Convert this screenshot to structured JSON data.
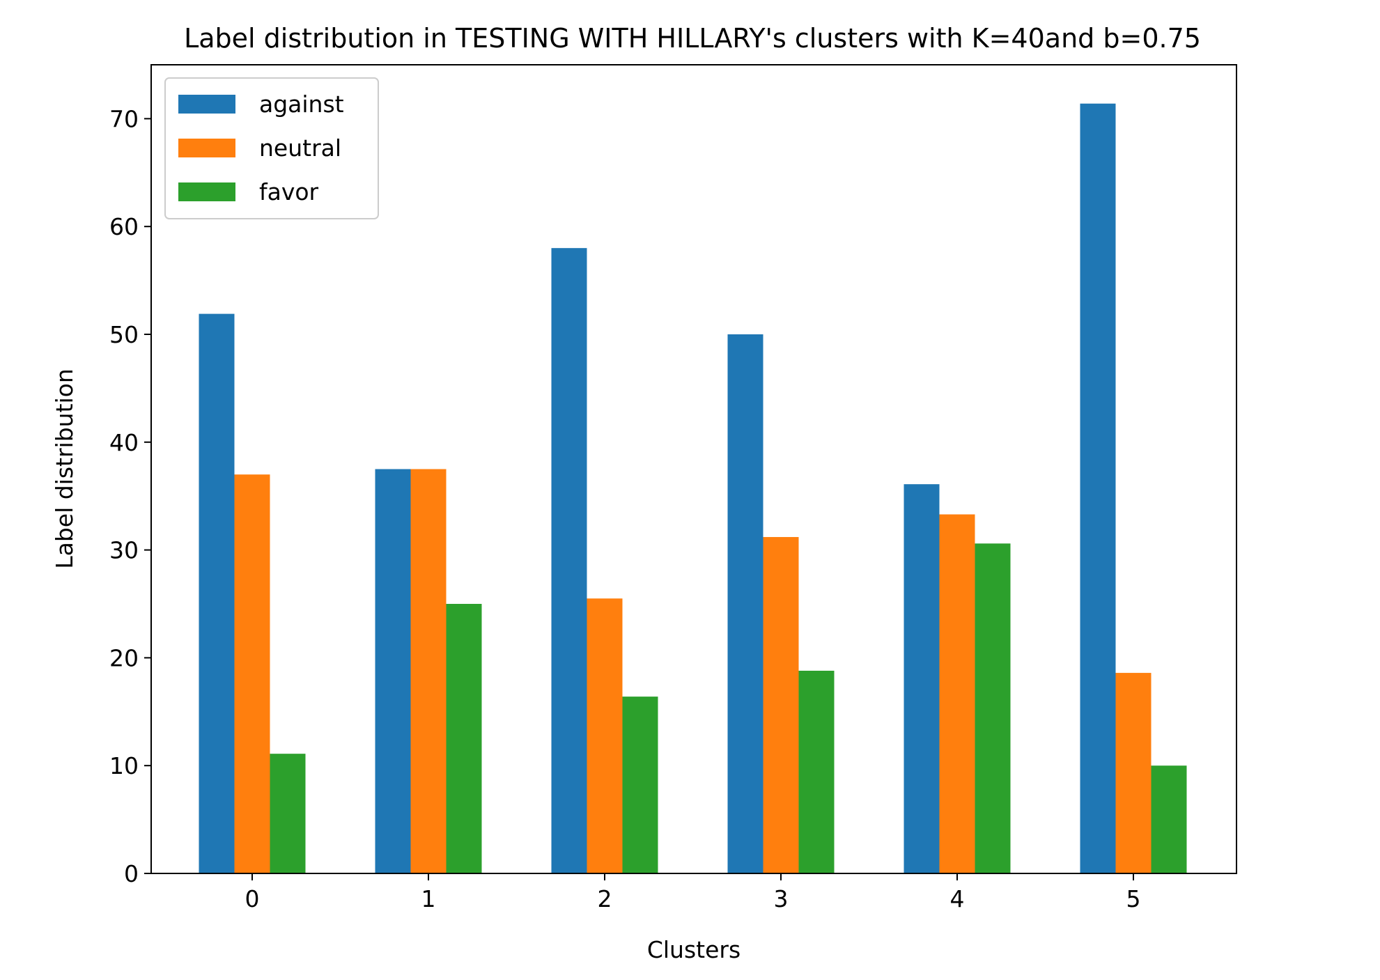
{
  "chart_data": {
    "type": "bar",
    "title": "Label distribution in TESTING WITH HILLARY's clusters with K=40and b=0.75",
    "xlabel": "Clusters",
    "ylabel": "Label distribution",
    "categories": [
      "0",
      "1",
      "2",
      "3",
      "4",
      "5"
    ],
    "series": [
      {
        "name": "against",
        "color": "#1f77b4",
        "values": [
          51.9,
          37.5,
          58.0,
          50.0,
          36.1,
          71.4
        ]
      },
      {
        "name": "neutral",
        "color": "#ff7f0e",
        "values": [
          37.0,
          37.5,
          25.5,
          31.2,
          33.3,
          18.6
        ]
      },
      {
        "name": "favor",
        "color": "#2ca02c",
        "values": [
          11.1,
          25.0,
          16.4,
          18.8,
          30.6,
          10.0
        ]
      }
    ],
    "ylim": [
      0,
      75
    ],
    "yticks": [
      0,
      10,
      20,
      30,
      40,
      50,
      60,
      70
    ],
    "grid": false,
    "legend_position": "top-left"
  }
}
